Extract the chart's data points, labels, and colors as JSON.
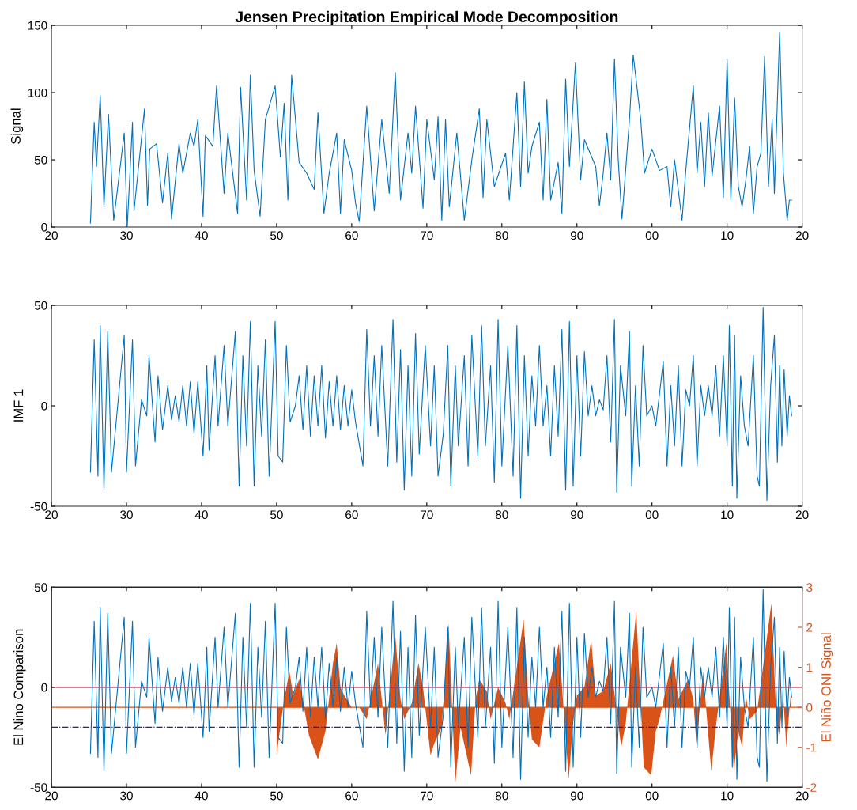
{
  "chart_data": [
    {
      "type": "line",
      "title": "Jensen Precipitation Empirical Mode Decomposition",
      "ylabel": "Signal",
      "grid": false,
      "xlim": [
        1920,
        2020
      ],
      "ylim": [
        0,
        150
      ],
      "xticks": [
        {
          "value": 1920,
          "label": "20"
        },
        {
          "value": 1930,
          "label": "30"
        },
        {
          "value": 1940,
          "label": "40"
        },
        {
          "value": 1950,
          "label": "50"
        },
        {
          "value": 1960,
          "label": "60"
        },
        {
          "value": 1970,
          "label": "70"
        },
        {
          "value": 1980,
          "label": "80"
        },
        {
          "value": 1990,
          "label": "90"
        },
        {
          "value": 2000,
          "label": "00"
        },
        {
          "value": 2010,
          "label": "10"
        },
        {
          "value": 2020,
          "label": "20"
        }
      ],
      "yticks": [
        0,
        50,
        100,
        150
      ],
      "series": [
        {
          "color": "#0072bd",
          "x": [
            1925.2,
            1925.7,
            1926,
            1926.5,
            1927,
            1927.6,
            1928.3,
            1929.7,
            1930.1,
            1930.8,
            1931,
            1932.4,
            1932.8,
            1933.1,
            1934,
            1934.8,
            1935.5,
            1936,
            1937,
            1937.5,
            1938.5,
            1939,
            1939.5,
            1940.2,
            1940.5,
            1941.5,
            1942,
            1943,
            1943.5,
            1944.8,
            1945.2,
            1946,
            1946.5,
            1947,
            1947.8,
            1948.5,
            1949.8,
            1950.5,
            1951,
            1951.5,
            1952,
            1953,
            1954,
            1955,
            1955.5,
            1956.3,
            1957,
            1958,
            1958.5,
            1959,
            1960,
            1960.5,
            1961,
            1962,
            1963,
            1964,
            1965,
            1965.8,
            1966.5,
            1967.5,
            1968,
            1968.5,
            1969.5,
            1970,
            1971,
            1971.5,
            1972,
            1972.5,
            1973,
            1974,
            1975,
            1976,
            1977,
            1977.5,
            1978,
            1979,
            1980.5,
            1981,
            1982,
            1982.5,
            1983,
            1983.5,
            1984,
            1985,
            1985.5,
            1986,
            1986.5,
            1987.5,
            1988,
            1988.5,
            1989,
            1989.8,
            1990.5,
            1991,
            1992.5,
            1993,
            1993.5,
            1994,
            1994.5,
            1995,
            1995.5,
            1996,
            1997,
            1997.5,
            1998.5,
            1999,
            2000,
            2001,
            2002,
            2002.5,
            2003,
            2004,
            2004.5,
            2005.5,
            2006,
            2006.5,
            2007,
            2007.5,
            2008,
            2009,
            2009.5,
            2010,
            2010.5,
            2011,
            2011.5,
            2012,
            2012.5,
            2013,
            2013.5,
            2014,
            2014.5,
            2015,
            2015.5,
            2016,
            2016.3,
            2017,
            2017.5,
            2017.8,
            2018,
            2018.3,
            2018.6
          ],
          "values": [
            3,
            78,
            45,
            98,
            15,
            84,
            5,
            70,
            0,
            78,
            12,
            88,
            16,
            58,
            62,
            18,
            55,
            6,
            62,
            40,
            70,
            60,
            80,
            8,
            68,
            60,
            105,
            25,
            70,
            10,
            104,
            20,
            113,
            42,
            8,
            80,
            105,
            52,
            92,
            20,
            113,
            48,
            40,
            28,
            85,
            10,
            40,
            70,
            10,
            65,
            42,
            18,
            4,
            90,
            12,
            80,
            25,
            115,
            20,
            70,
            40,
            90,
            14,
            80,
            35,
            82,
            5,
            80,
            15,
            70,
            5,
            50,
            88,
            22,
            80,
            30,
            55,
            20,
            100,
            30,
            108,
            40,
            60,
            78,
            20,
            95,
            20,
            48,
            10,
            110,
            45,
            122,
            35,
            65,
            45,
            16,
            40,
            70,
            35,
            125,
            50,
            6,
            80,
            128,
            80,
            40,
            58,
            42,
            45,
            15,
            50,
            5,
            42,
            105,
            40,
            78,
            30,
            85,
            38,
            90,
            22,
            125,
            20,
            96,
            30,
            15,
            35,
            60,
            10,
            45,
            55,
            127,
            30,
            80,
            25,
            145,
            40,
            20,
            5,
            20,
            20
          ]
        }
      ]
    },
    {
      "type": "line",
      "ylabel": "IMF 1",
      "grid": false,
      "xlim": [
        1920,
        2020
      ],
      "ylim": [
        -50,
        50
      ],
      "xticks": [
        {
          "value": 1920,
          "label": "20"
        },
        {
          "value": 1930,
          "label": "30"
        },
        {
          "value": 1940,
          "label": "40"
        },
        {
          "value": 1950,
          "label": "50"
        },
        {
          "value": 1960,
          "label": "60"
        },
        {
          "value": 1970,
          "label": "70"
        },
        {
          "value": 1980,
          "label": "80"
        },
        {
          "value": 1990,
          "label": "90"
        },
        {
          "value": 2000,
          "label": "00"
        },
        {
          "value": 2010,
          "label": "10"
        },
        {
          "value": 2020,
          "label": "20"
        }
      ],
      "yticks": [
        -50,
        0,
        50
      ],
      "series": [
        {
          "color": "#0072bd",
          "x": [
            1925.2,
            1925.7,
            1926.2,
            1926.5,
            1927,
            1927.5,
            1928,
            1929.7,
            1930,
            1930.8,
            1931.2,
            1932,
            1932.7,
            1933,
            1933.8,
            1934.2,
            1934.8,
            1935.5,
            1936,
            1936.5,
            1937,
            1937.5,
            1938,
            1938.5,
            1939,
            1939.5,
            1940.2,
            1940.7,
            1941,
            1941.8,
            1942.2,
            1943,
            1943.5,
            1944.5,
            1945,
            1945.5,
            1946,
            1946.5,
            1947,
            1947.5,
            1948,
            1948.5,
            1949,
            1949.8,
            1950.2,
            1950.8,
            1951.3,
            1951.8,
            1952.5,
            1953,
            1953.5,
            1954,
            1954.5,
            1955,
            1955.5,
            1956,
            1956.5,
            1957,
            1957.5,
            1958,
            1958.5,
            1959,
            1959.5,
            1960,
            1960.5,
            1961.5,
            1962,
            1962.5,
            1963,
            1963.5,
            1964,
            1964.8,
            1965.5,
            1966,
            1966.5,
            1967,
            1967.5,
            1968,
            1968.5,
            1969,
            1969.8,
            1970.5,
            1971,
            1971.5,
            1972.2,
            1972.8,
            1973.2,
            1973.8,
            1974.2,
            1975,
            1975.5,
            1976,
            1976.8,
            1977.3,
            1977.8,
            1978.5,
            1979,
            1979.5,
            1980,
            1980.8,
            1981.5,
            1982,
            1982.5,
            1983,
            1983.5,
            1984,
            1984.5,
            1985,
            1985.5,
            1986,
            1986.5,
            1987,
            1987.5,
            1988,
            1988.5,
            1989,
            1989.5,
            1990,
            1990.5,
            1991,
            1991.5,
            1992,
            1992.5,
            1993,
            1993.5,
            1994,
            1994.5,
            1995,
            1995.3,
            1995.8,
            1996.5,
            1997,
            1997.3,
            1997.8,
            1998.3,
            1998.8,
            1999.3,
            2000,
            2000.5,
            2001.5,
            2002,
            2002.5,
            2003,
            2003.5,
            2004,
            2004.5,
            2005,
            2005.5,
            2006,
            2006.5,
            2007,
            2007.5,
            2008,
            2008.5,
            2009,
            2009.5,
            2010,
            2010.3,
            2010.7,
            2011,
            2011.3,
            2011.8,
            2012.3,
            2012.8,
            2013.5,
            2014,
            2014.3,
            2014.8,
            2015.3,
            2015.8,
            2016.3,
            2016.7,
            2017,
            2017.3,
            2017.6,
            2018,
            2018.3,
            2018.6
          ],
          "values": [
            -33,
            33,
            -35,
            40,
            -42,
            37,
            -33,
            35,
            -33,
            33,
            -30,
            3,
            -5,
            25,
            -18,
            15,
            -12,
            10,
            -7,
            5,
            -8,
            10,
            -10,
            12,
            -14,
            12,
            -25,
            20,
            -22,
            25,
            -10,
            30,
            -10,
            37,
            -40,
            25,
            -20,
            42,
            -40,
            20,
            -15,
            33,
            -35,
            42,
            -25,
            -28,
            30,
            -8,
            0,
            15,
            -12,
            20,
            -15,
            15,
            -10,
            20,
            -16,
            12,
            -10,
            15,
            -12,
            10,
            -10,
            8,
            -8,
            -30,
            38,
            -10,
            25,
            -15,
            30,
            -30,
            43,
            -28,
            28,
            -42,
            20,
            -35,
            36,
            -24,
            30,
            -20,
            20,
            -35,
            -14,
            30,
            -40,
            20,
            -20,
            25,
            -30,
            35,
            -25,
            40,
            -20,
            20,
            -38,
            43,
            -30,
            30,
            -35,
            40,
            -46,
            25,
            -25,
            15,
            -10,
            30,
            -10,
            10,
            -25,
            20,
            -15,
            38,
            -42,
            42,
            -40,
            25,
            -25,
            27,
            -5,
            10,
            -5,
            3,
            -2,
            25,
            -18,
            43,
            -43,
            20,
            -5,
            37,
            -40,
            10,
            -30,
            30,
            -5,
            0,
            -10,
            22,
            -30,
            10,
            -20,
            20,
            -30,
            8,
            0,
            25,
            -30,
            10,
            -5,
            10,
            -5,
            20,
            -15,
            25,
            -20,
            40,
            -40,
            35,
            -46,
            15,
            -10,
            -20,
            25,
            -35,
            -40,
            49,
            -47,
            10,
            35,
            -28,
            20,
            -20,
            18,
            -15,
            5,
            -5
          ]
        }
      ]
    },
    {
      "type": "line",
      "ylabel": "El Nino Comparison",
      "y2label": "El Niño ONI Signal",
      "grid": false,
      "xlim": [
        1920,
        2020
      ],
      "ylim": [
        -50,
        50
      ],
      "y2lim": [
        -2,
        3
      ],
      "xticks": [
        {
          "value": 1920,
          "label": "20"
        },
        {
          "value": 1930,
          "label": "30"
        },
        {
          "value": 1940,
          "label": "40"
        },
        {
          "value": 1950,
          "label": "50"
        },
        {
          "value": 1960,
          "label": "60"
        },
        {
          "value": 1970,
          "label": "70"
        },
        {
          "value": 1980,
          "label": "80"
        },
        {
          "value": 1990,
          "label": "90"
        },
        {
          "value": 2000,
          "label": "00"
        },
        {
          "value": 2010,
          "label": "10"
        },
        {
          "value": 2020,
          "label": "20"
        }
      ],
      "yticks": [
        -50,
        0,
        50
      ],
      "y2ticks": [
        -2,
        -1,
        0,
        1,
        2,
        3
      ],
      "ref_lines": [
        {
          "axis": "y2",
          "value": 0.5,
          "color": "#a2142f",
          "line_style": "solid"
        },
        {
          "axis": "y2",
          "value": 0,
          "color": "#d95319",
          "line_style": "solid"
        },
        {
          "axis": "y2",
          "value": -0.5,
          "color": "#1f1fb4",
          "line_style": "dashdot"
        }
      ],
      "series": [
        {
          "color": "#0072bd",
          "x": [
            1925.2,
            1925.7,
            1926.2,
            1926.5,
            1927,
            1927.5,
            1928,
            1929.7,
            1930,
            1930.8,
            1931.2,
            1932,
            1932.7,
            1933,
            1933.8,
            1934.2,
            1934.8,
            1935.5,
            1936,
            1936.5,
            1937,
            1937.5,
            1938,
            1938.5,
            1939,
            1939.5,
            1940.2,
            1940.7,
            1941,
            1941.8,
            1942.2,
            1943,
            1943.5,
            1944.5,
            1945,
            1945.5,
            1946,
            1946.5,
            1947,
            1947.5,
            1948,
            1948.5,
            1949,
            1949.8,
            1950.2,
            1950.8,
            1951.3,
            1951.8,
            1952.5,
            1953,
            1953.5,
            1954,
            1954.5,
            1955,
            1955.5,
            1956,
            1956.5,
            1957,
            1957.5,
            1958,
            1958.5,
            1959,
            1959.5,
            1960,
            1960.5,
            1961.5,
            1962,
            1962.5,
            1963,
            1963.5,
            1964,
            1964.8,
            1965.5,
            1966,
            1966.5,
            1967,
            1967.5,
            1968,
            1968.5,
            1969,
            1969.8,
            1970.5,
            1971,
            1971.5,
            1972.2,
            1972.8,
            1973.2,
            1973.8,
            1974.2,
            1975,
            1975.5,
            1976,
            1976.8,
            1977.3,
            1977.8,
            1978.5,
            1979,
            1979.5,
            1980,
            1980.8,
            1981.5,
            1982,
            1982.5,
            1983,
            1983.5,
            1984,
            1984.5,
            1985,
            1985.5,
            1986,
            1986.5,
            1987,
            1987.5,
            1988,
            1988.5,
            1989,
            1989.5,
            1990,
            1990.5,
            1991,
            1991.5,
            1992,
            1992.5,
            1993,
            1993.5,
            1994,
            1994.5,
            1995,
            1995.3,
            1995.8,
            1996.5,
            1997,
            1997.3,
            1997.8,
            1998.3,
            1998.8,
            1999.3,
            2000,
            2000.5,
            2001.5,
            2002,
            2002.5,
            2003,
            2003.5,
            2004,
            2004.5,
            2005,
            2005.5,
            2006,
            2006.5,
            2007,
            2007.5,
            2008,
            2008.5,
            2009,
            2009.5,
            2010,
            2010.3,
            2010.7,
            2011,
            2011.3,
            2011.8,
            2012.3,
            2012.8,
            2013.5,
            2014,
            2014.3,
            2014.8,
            2015.3,
            2015.8,
            2016.3,
            2016.7,
            2017,
            2017.3,
            2017.6,
            2018,
            2018.3,
            2018.6
          ],
          "values": [
            -33,
            33,
            -35,
            40,
            -42,
            37,
            -33,
            35,
            -33,
            33,
            -30,
            3,
            -5,
            25,
            -18,
            15,
            -12,
            10,
            -7,
            5,
            -8,
            10,
            -10,
            12,
            -14,
            12,
            -25,
            20,
            -22,
            25,
            -10,
            30,
            -10,
            37,
            -40,
            25,
            -20,
            42,
            -40,
            20,
            -15,
            33,
            -35,
            42,
            -25,
            -28,
            30,
            -8,
            0,
            15,
            -12,
            20,
            -15,
            15,
            -10,
            20,
            -16,
            12,
            -10,
            15,
            -12,
            10,
            -10,
            8,
            -8,
            -30,
            38,
            -10,
            25,
            -15,
            30,
            -30,
            43,
            -28,
            28,
            -42,
            20,
            -35,
            36,
            -24,
            30,
            -20,
            20,
            -35,
            -14,
            30,
            -40,
            20,
            -20,
            25,
            -30,
            35,
            -25,
            40,
            -20,
            20,
            -38,
            43,
            -30,
            30,
            -35,
            40,
            -46,
            25,
            -25,
            15,
            -10,
            30,
            -10,
            10,
            -25,
            20,
            -15,
            38,
            -42,
            42,
            -40,
            25,
            -25,
            27,
            -5,
            10,
            -5,
            3,
            -2,
            25,
            -18,
            43,
            -43,
            20,
            -5,
            37,
            -40,
            10,
            -30,
            30,
            -5,
            0,
            -10,
            22,
            -30,
            10,
            -20,
            20,
            -30,
            8,
            0,
            25,
            -30,
            10,
            -5,
            10,
            -5,
            20,
            -15,
            25,
            -20,
            40,
            -40,
            35,
            -46,
            15,
            -10,
            -20,
            25,
            -35,
            -40,
            49,
            -47,
            10,
            35,
            -28,
            20,
            -20,
            18,
            -15,
            5,
            -5
          ]
        },
        {
          "type": "area",
          "axis": "y2",
          "color": "#d95319",
          "x": [
            1950,
            1951,
            1951.7,
            1952.2,
            1953,
            1954.3,
            1955.5,
            1956.5,
            1957.5,
            1958,
            1958.5,
            1959,
            1960,
            1961,
            1962,
            1963.5,
            1964.5,
            1965.8,
            1966.5,
            1967,
            1968,
            1968.9,
            1969.5,
            1970.5,
            1971,
            1972,
            1972.9,
            1973.8,
            1974.5,
            1975.9,
            1976.5,
            1977,
            1978,
            1978.5,
            1979.5,
            1980.5,
            1981,
            1982.9,
            1983.5,
            1984,
            1985,
            1986,
            1987.6,
            1988.9,
            1989.5,
            1990,
            1991,
            1991.9,
            1992.5,
            1993.5,
            1994.5,
            1995.9,
            1996.5,
            1997.9,
            1998.9,
            1999.9,
            2000.5,
            2001,
            2002.8,
            2003.5,
            2004.8,
            2005.5,
            2005.9,
            2006.8,
            2007.9,
            2008.5,
            2009.9,
            2010.9,
            2011.5,
            2012,
            2012.5,
            2013,
            2014,
            2015.9,
            2016.5,
            2016.9,
            2017.5,
            2017.9,
            2018.5
          ],
          "values": [
            -1.2,
            0.2,
            0.9,
            0.3,
            0.7,
            -0.7,
            -1.3,
            -0.6,
            1.1,
            1.6,
            0.5,
            0.3,
            0,
            0,
            -0.3,
            1.1,
            -0.7,
            1.8,
            0.2,
            -0.3,
            0.1,
            1.1,
            0.5,
            -1.2,
            -0.9,
            -0.5,
            2.1,
            -1.9,
            -0.5,
            -1.7,
            0.2,
            0.7,
            0.4,
            -0.3,
            0.5,
            0.1,
            -0.3,
            2.2,
            0.3,
            -0.8,
            -1.0,
            0.3,
            1.6,
            -1.8,
            -0.4,
            0.3,
            0.5,
            1.7,
            0.3,
            0.4,
            1.1,
            -1.0,
            -0.4,
            2.4,
            -1.5,
            -1.7,
            -0.6,
            -0.3,
            1.3,
            0.2,
            0.7,
            0.2,
            -0.9,
            0.9,
            -1.6,
            -0.5,
            1.6,
            -1.6,
            -0.6,
            -1.0,
            0.3,
            -0.3,
            -0.1,
            2.6,
            0.0,
            -0.7,
            0.2,
            -1.0,
            0.4
          ]
        }
      ]
    }
  ]
}
